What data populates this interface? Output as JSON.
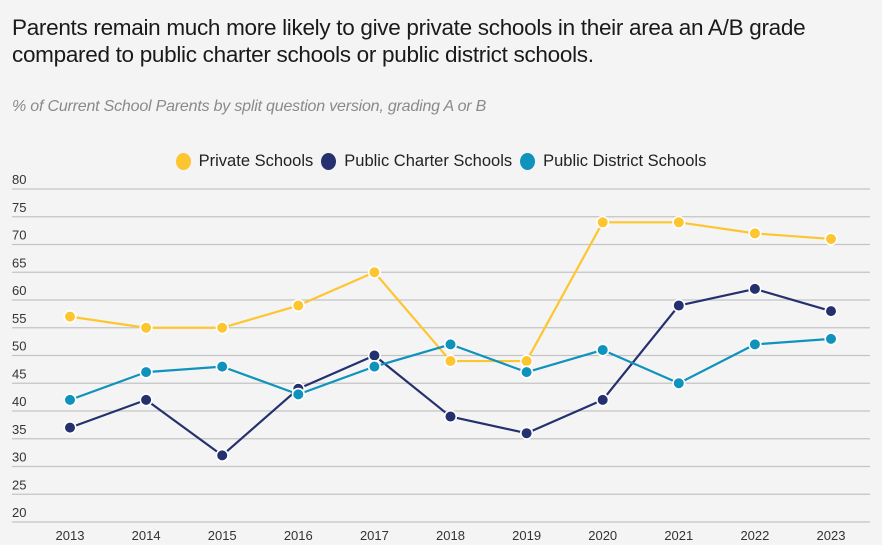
{
  "chart_data": {
    "type": "line",
    "title": "Parents remain much more likely to give private schools in their area an A/B grade compared to public charter schools or public district schools.",
    "subtitle": "% of Current School Parents by split question version, grading A or B",
    "xlabel": "",
    "ylabel": "",
    "x": [
      "2013",
      "2014",
      "2015",
      "2016",
      "2017",
      "2018",
      "2019",
      "2020",
      "2021",
      "2022",
      "2023"
    ],
    "ylim": [
      20,
      80
    ],
    "yticks": [
      20,
      25,
      30,
      35,
      40,
      45,
      50,
      55,
      60,
      65,
      70,
      75,
      80
    ],
    "grid": true,
    "legend_position": "top-center",
    "series": [
      {
        "name": "Private Schools",
        "color": "#fdc52f",
        "values": [
          57,
          55,
          55,
          59,
          65,
          49,
          49,
          74,
          74,
          72,
          71
        ]
      },
      {
        "name": "Public Charter Schools",
        "color": "#25306f",
        "values": [
          37,
          42,
          32,
          44,
          50,
          39,
          36,
          42,
          59,
          62,
          58
        ]
      },
      {
        "name": "Public District Schools",
        "color": "#0f93bc",
        "values": [
          42,
          47,
          48,
          43,
          48,
          52,
          47,
          51,
          45,
          52,
          53
        ]
      }
    ]
  }
}
